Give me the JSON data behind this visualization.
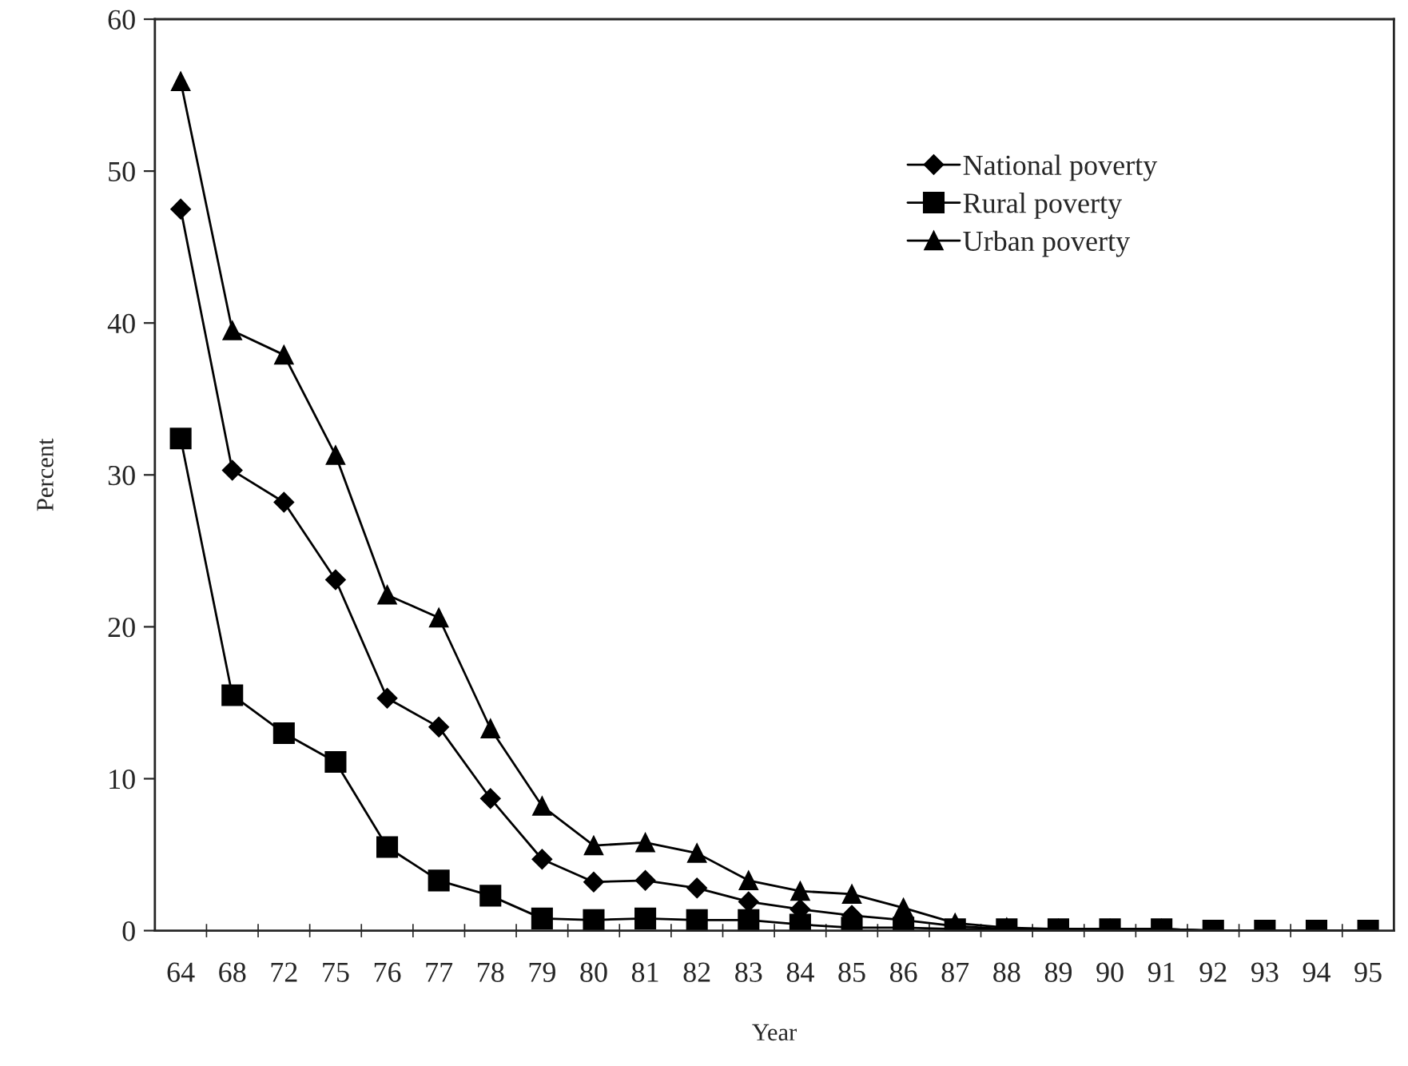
{
  "chart_data": {
    "type": "line",
    "xlabel": "Year",
    "ylabel": "Percent",
    "categories": [
      "64",
      "68",
      "72",
      "75",
      "76",
      "77",
      "78",
      "79",
      "80",
      "81",
      "82",
      "83",
      "84",
      "85",
      "86",
      "87",
      "88",
      "89",
      "90",
      "91",
      "92",
      "93",
      "94",
      "95"
    ],
    "series": [
      {
        "name": "National poverty",
        "color": "#000000",
        "marker": "diamond",
        "values": [
          47.5,
          30.3,
          28.2,
          23.1,
          15.3,
          13.4,
          8.7,
          4.7,
          3.2,
          3.3,
          2.8,
          1.9,
          1.4,
          1.0,
          0.7,
          0.3,
          0.1,
          0.1,
          0.1,
          0.1,
          0,
          0,
          0,
          0
        ]
      },
      {
        "name": "Rural poverty",
        "color": "#000000",
        "marker": "square",
        "values": [
          32.4,
          15.5,
          13.0,
          11.1,
          5.5,
          3.3,
          2.3,
          0.8,
          0.7,
          0.8,
          0.7,
          0.7,
          0.4,
          0.2,
          0.2,
          0.1,
          0.1,
          0.1,
          0.1,
          0.1,
          0,
          0,
          0,
          0
        ]
      },
      {
        "name": "Urban poverty",
        "color": "#000000",
        "marker": "triangle",
        "values": [
          55.9,
          39.5,
          37.9,
          31.3,
          22.1,
          20.6,
          13.3,
          8.2,
          5.6,
          5.8,
          5.1,
          3.3,
          2.6,
          2.4,
          1.5,
          0.5,
          0.2,
          0.1,
          0.1,
          0.1,
          0,
          0,
          0,
          0
        ]
      }
    ],
    "ylim": [
      0,
      60
    ],
    "yticks": [
      0,
      10,
      20,
      30,
      40,
      50,
      60
    ],
    "grid": false,
    "legend": "top right",
    "line_style": "solid"
  }
}
